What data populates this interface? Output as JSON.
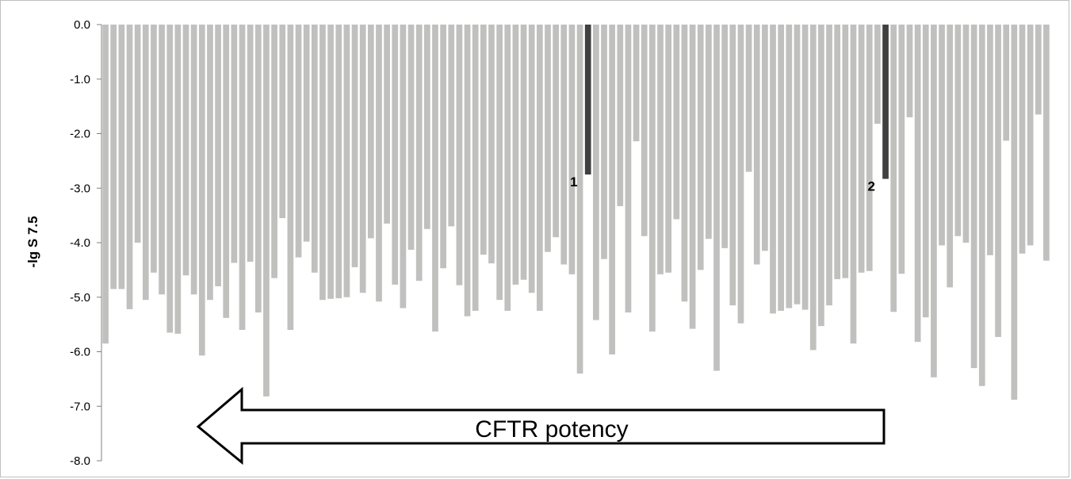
{
  "chart_data": {
    "type": "bar",
    "ylabel": "-lg S 7.5",
    "ylim": [
      -8.0,
      0.0
    ],
    "yticks": [
      "0.0",
      "-1.0",
      "-2.0",
      "-3.0",
      "-4.0",
      "-5.0",
      "-6.0",
      "-7.0",
      "-8.0"
    ],
    "grid": false,
    "values": [
      -5.85,
      -4.85,
      -4.85,
      -5.22,
      -4.0,
      -5.05,
      -4.55,
      -4.95,
      -5.65,
      -5.67,
      -4.6,
      -4.95,
      -6.07,
      -5.05,
      -4.8,
      -5.38,
      -4.37,
      -5.6,
      -4.35,
      -5.28,
      -6.82,
      -4.65,
      -3.55,
      -5.6,
      -4.27,
      -3.98,
      -4.55,
      -5.05,
      -5.03,
      -5.02,
      -5.0,
      -4.45,
      -4.92,
      -3.92,
      -5.08,
      -3.65,
      -4.77,
      -5.2,
      -4.13,
      -4.7,
      -3.75,
      -5.63,
      -4.47,
      -3.7,
      -4.78,
      -5.35,
      -5.25,
      -4.22,
      -4.38,
      -5.05,
      -5.25,
      -4.77,
      -4.68,
      -4.92,
      -5.25,
      -4.17,
      -3.9,
      -4.4,
      -4.58,
      -6.4,
      -2.75,
      -5.42,
      -4.3,
      -6.05,
      -3.33,
      -5.28,
      -2.14,
      -3.88,
      -5.63,
      -4.58,
      -4.55,
      -3.57,
      -5.08,
      -5.58,
      -4.5,
      -3.93,
      -6.35,
      -4.1,
      -5.15,
      -5.48,
      -2.7,
      -4.4,
      -4.15,
      -5.3,
      -5.25,
      -5.2,
      -5.13,
      -5.23,
      -5.97,
      -5.53,
      -5.15,
      -4.67,
      -4.65,
      -5.85,
      -4.55,
      -4.52,
      -1.82,
      -2.83,
      -5.27,
      -4.57,
      -1.7,
      -5.82,
      -5.37,
      -6.47,
      -4.05,
      -4.82,
      -3.88,
      -4.0,
      -6.3,
      -6.63,
      -4.23,
      -5.73,
      -2.13,
      -6.88,
      -4.2,
      -4.05,
      -1.65,
      -4.33
    ],
    "highlighted": [
      {
        "index": 60,
        "label": "1",
        "color": "#404040"
      },
      {
        "index": 97,
        "label": "2",
        "color": "#404040"
      }
    ],
    "bar_color": "#c0c0bf",
    "annotation": {
      "text": "CFTR potency",
      "direction": "left"
    }
  }
}
